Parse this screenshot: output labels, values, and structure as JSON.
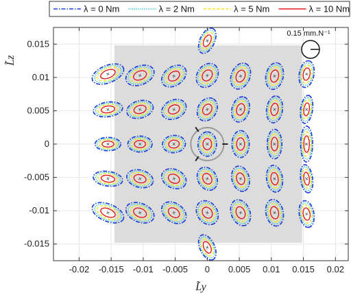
{
  "chart_data": {
    "type": "scatter",
    "subtype": "stiffness-ellipse-grid",
    "title": "",
    "xlabel": "L̃y",
    "ylabel": "L̃z",
    "xlim": [
      -0.024,
      0.022
    ],
    "ylim": [
      -0.0175,
      0.0175
    ],
    "x_ticks": [
      -0.02,
      -0.015,
      -0.01,
      -0.005,
      0,
      0.005,
      0.01,
      0.015,
      0.02
    ],
    "x_tick_labels": [
      "-0.02",
      "-0.015",
      "-0.01",
      "-0.005",
      "0",
      "0.005",
      "0.01",
      "0.015",
      "0.02"
    ],
    "y_ticks": [
      -0.015,
      -0.01,
      -0.005,
      0,
      0.005,
      0.01,
      0.015
    ],
    "y_tick_labels": [
      "-0.015",
      "-0.01",
      "-0.005",
      "0",
      "0.005",
      "0.01",
      "0.015"
    ],
    "grid": true,
    "legend_position": "top",
    "workspace_rect": {
      "x": [
        -0.0145,
        0.0148
      ],
      "y": [
        -0.0148,
        0.0148
      ],
      "color": "#dcdcdc"
    },
    "scale_bar_label": "0.15 mm.N⁻¹",
    "scale_bar_value": 0.15,
    "series": [
      {
        "name": "λ = 0 Nm",
        "color": "#1f3fd6",
        "style": "dashdot",
        "scale": 1.0
      },
      {
        "name": "λ = 2 Nm",
        "color": "#19c3c8",
        "style": "dotted",
        "scale": 0.84
      },
      {
        "name": "λ = 5 Nm",
        "color": "#f5e21a",
        "style": "dashed",
        "scale": 0.68
      },
      {
        "name": "λ = 10 Nm",
        "color": "#e01a1a",
        "style": "solid",
        "scale": 0.46
      }
    ],
    "ellipses": [
      {
        "x": 0.0,
        "y": 0.0155,
        "a": 0.0021,
        "b": 0.0011,
        "angle": 65
      },
      {
        "x": -0.0155,
        "y": 0.0105,
        "a": 0.0026,
        "b": 0.0013,
        "angle": 22
      },
      {
        "x": -0.0105,
        "y": 0.0103,
        "a": 0.0023,
        "b": 0.0014,
        "angle": 22
      },
      {
        "x": -0.0052,
        "y": 0.0102,
        "a": 0.0021,
        "b": 0.0014,
        "angle": 35
      },
      {
        "x": 0.0,
        "y": 0.0103,
        "a": 0.002,
        "b": 0.0015,
        "angle": 55
      },
      {
        "x": 0.0052,
        "y": 0.0102,
        "a": 0.0021,
        "b": 0.0014,
        "angle": 68
      },
      {
        "x": 0.0105,
        "y": 0.0102,
        "a": 0.0021,
        "b": 0.0013,
        "angle": 78
      },
      {
        "x": 0.0155,
        "y": 0.0105,
        "a": 0.0021,
        "b": 0.0011,
        "angle": 80
      },
      {
        "x": -0.0155,
        "y": 0.0052,
        "a": 0.0023,
        "b": 0.0011,
        "angle": 8
      },
      {
        "x": -0.0105,
        "y": 0.0052,
        "a": 0.0021,
        "b": 0.0013,
        "angle": 15
      },
      {
        "x": -0.0052,
        "y": 0.0052,
        "a": 0.002,
        "b": 0.0014,
        "angle": 25
      },
      {
        "x": 0.0,
        "y": 0.0052,
        "a": 0.0019,
        "b": 0.0014,
        "angle": 60
      },
      {
        "x": 0.0052,
        "y": 0.0052,
        "a": 0.002,
        "b": 0.0013,
        "angle": 75
      },
      {
        "x": 0.0105,
        "y": 0.0052,
        "a": 0.0021,
        "b": 0.0012,
        "angle": 82
      },
      {
        "x": 0.0155,
        "y": 0.0052,
        "a": 0.0022,
        "b": 0.0009,
        "angle": 82
      },
      {
        "x": -0.0155,
        "y": 0.0,
        "a": 0.002,
        "b": 0.001,
        "angle": 0
      },
      {
        "x": -0.0105,
        "y": 0.0,
        "a": 0.0019,
        "b": 0.0012,
        "angle": 0
      },
      {
        "x": -0.0052,
        "y": 0.0,
        "a": 0.0018,
        "b": 0.0013,
        "angle": 5
      },
      {
        "x": 0.0,
        "y": 0.0,
        "a": 0.0019,
        "b": 0.0014,
        "angle": 90
      },
      {
        "x": 0.0052,
        "y": 0.0,
        "a": 0.0021,
        "b": 0.0013,
        "angle": 90
      },
      {
        "x": 0.0105,
        "y": 0.0,
        "a": 0.0023,
        "b": 0.0011,
        "angle": 90
      },
      {
        "x": 0.0155,
        "y": 0.0,
        "a": 0.0028,
        "b": 0.0009,
        "angle": 90
      },
      {
        "x": -0.0155,
        "y": -0.0052,
        "a": 0.0023,
        "b": 0.0011,
        "angle": -8
      },
      {
        "x": -0.0105,
        "y": -0.0052,
        "a": 0.0021,
        "b": 0.0013,
        "angle": -15
      },
      {
        "x": -0.0052,
        "y": -0.0052,
        "a": 0.002,
        "b": 0.0014,
        "angle": -25
      },
      {
        "x": 0.0,
        "y": -0.0052,
        "a": 0.0019,
        "b": 0.0014,
        "angle": -60
      },
      {
        "x": 0.0052,
        "y": -0.0052,
        "a": 0.002,
        "b": 0.0013,
        "angle": -75
      },
      {
        "x": 0.0105,
        "y": -0.0052,
        "a": 0.0021,
        "b": 0.0012,
        "angle": -82
      },
      {
        "x": 0.0155,
        "y": -0.0052,
        "a": 0.0022,
        "b": 0.0009,
        "angle": -82
      },
      {
        "x": -0.0155,
        "y": -0.0103,
        "a": 0.0026,
        "b": 0.0013,
        "angle": -22
      },
      {
        "x": -0.0105,
        "y": -0.0103,
        "a": 0.0023,
        "b": 0.0014,
        "angle": -22
      },
      {
        "x": -0.0052,
        "y": -0.0103,
        "a": 0.0021,
        "b": 0.0014,
        "angle": -35
      },
      {
        "x": 0.0,
        "y": -0.0103,
        "a": 0.002,
        "b": 0.0015,
        "angle": -55
      },
      {
        "x": 0.0052,
        "y": -0.0103,
        "a": 0.0021,
        "b": 0.0014,
        "angle": -68
      },
      {
        "x": 0.0105,
        "y": -0.0103,
        "a": 0.0021,
        "b": 0.0013,
        "angle": -78
      },
      {
        "x": 0.0155,
        "y": -0.0105,
        "a": 0.0021,
        "b": 0.0011,
        "angle": -80
      },
      {
        "x": 0.0,
        "y": -0.0155,
        "a": 0.0021,
        "b": 0.0011,
        "angle": -65
      }
    ]
  }
}
